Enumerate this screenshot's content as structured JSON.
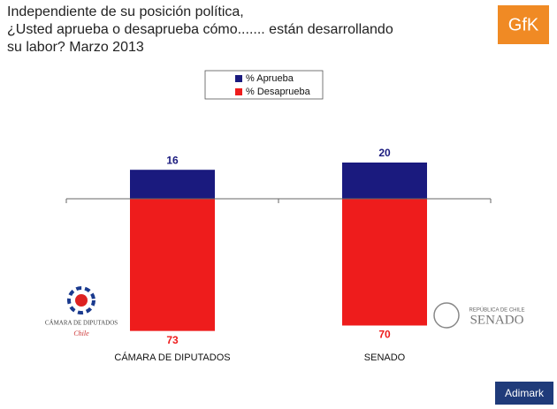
{
  "chart_data": {
    "type": "bar",
    "title": [
      "Independiente de su posición política,",
      "¿Usted aprueba o desaprueba cómo....... están desarrollando",
      "su labor? Marzo 2013"
    ],
    "categories": [
      "CÁMARA DE DIPUTADOS",
      "SENADO"
    ],
    "series": [
      {
        "name": "% Aprueba",
        "color": "#1a1a7e",
        "values": [
          16,
          20
        ]
      },
      {
        "name": "% Desaprueba",
        "color": "#ee1c1c",
        "values": [
          -73,
          -70
        ],
        "value_labels": [
          "73",
          "70"
        ]
      }
    ],
    "legend": "top"
  },
  "logos": {
    "gfk": "GfK",
    "camara": "CÁMARA DE DIPUTADOS",
    "camara_sub": "Chile",
    "senado_top": "REPÚBLICA DE CHILE",
    "senado": "SENADO",
    "adimark": "Adimark"
  }
}
